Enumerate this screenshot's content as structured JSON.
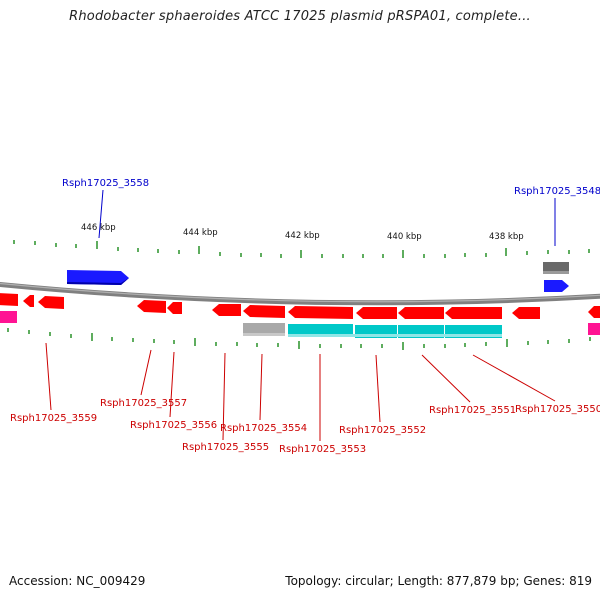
{
  "title": "Rhodobacter sphaeroides ATCC 17025 plasmid pRSPA01, complete...",
  "footer": {
    "accession": "Accession: NC_009429",
    "summary": "Topology: circular; Length: 877,879 bp; Genes: 819"
  },
  "scale_labels": [
    "446 kbp",
    "444 kbp",
    "442 kbp",
    "440 kbp",
    "438 kbp"
  ],
  "colors": {
    "backbone": "#808080",
    "forward_gene": "#1a1aff",
    "reverse_gene": "#ff0000",
    "rna_or_other": "#ff1493",
    "gray_feature": "#a9a9a9",
    "cyan_feature": "#00c8c8",
    "tick": "#1a8a1a",
    "top_label": "#0000cc",
    "bottom_label": "#cc0000"
  },
  "labels": {
    "top": [
      "Rsph17025_3558",
      "Rsph17025_3548"
    ],
    "bottom": [
      "Rsph17025_3559",
      "Rsph17025_3557",
      "Rsph17025_3556",
      "Rsph17025_3555",
      "Rsph17025_3554",
      "Rsph17025_3553",
      "Rsph17025_3552",
      "Rsph17025_3551",
      "Rsph17025_3550"
    ]
  }
}
